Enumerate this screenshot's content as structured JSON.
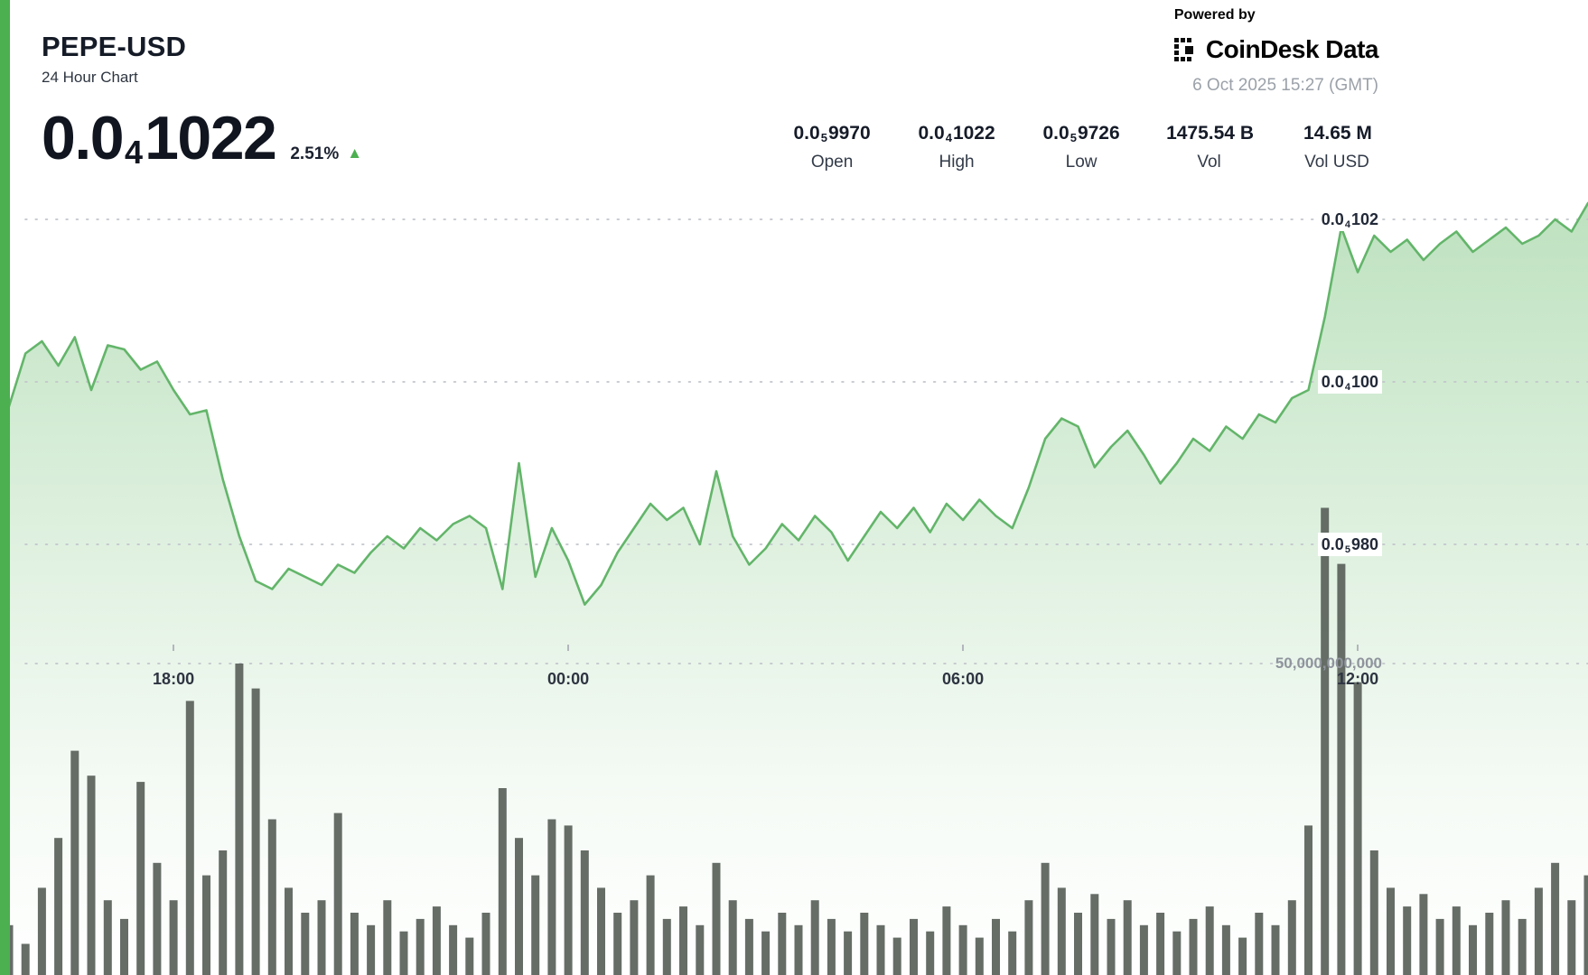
{
  "header": {
    "symbol": "PEPE-USD",
    "subtitle": "24 Hour Chart",
    "price": {
      "prefix": "0.0",
      "sub": "4",
      "rest": "1022"
    },
    "change_percent": "2.51%",
    "change_direction": "up",
    "powered_by": "Powered by",
    "brand_name": "CoinDesk Data",
    "timestamp": "6 Oct 2025 15:27 (GMT)"
  },
  "icons": {
    "up_triangle": "▲"
  },
  "stats": [
    {
      "value": {
        "prefix": "0.0",
        "sub": "5",
        "rest": "9970"
      },
      "label": "Open"
    },
    {
      "value": {
        "prefix": "0.0",
        "sub": "4",
        "rest": "1022"
      },
      "label": "High"
    },
    {
      "value": {
        "prefix": "0.0",
        "sub": "5",
        "rest": "9726"
      },
      "label": "Low"
    },
    {
      "value": {
        "prefix": "",
        "sub": "",
        "rest": "1475.54 B"
      },
      "label": "Vol"
    },
    {
      "value": {
        "prefix": "",
        "sub": "",
        "rest": "14.65 M"
      },
      "label": "Vol USD"
    }
  ],
  "colors": {
    "accent_green": "#4caf50",
    "line_green": "#63b56a",
    "area_green": "#7cc47f",
    "volume_bar": "#59615a",
    "grid": "#c2c5cb",
    "text_dark": "#151b27",
    "text_gray": "#9ba1a9"
  },
  "chart_data": {
    "type": "area",
    "title": "PEPE-USD 24 Hour Chart",
    "legend": "none",
    "grid": "dotted horizontal",
    "price_unit": "USD x 1e-7 (102 = 0.0000102)",
    "ohlc": {
      "open": "0.0₅9970",
      "high": "0.0₄1022",
      "low": "0.0₅9726",
      "volume": "1475.54 B",
      "volume_usd": "14.65 M"
    },
    "time_start": "15:30",
    "time_step_minutes": 15,
    "prices": [
      99.7,
      100.35,
      100.5,
      100.2,
      100.55,
      99.9,
      100.45,
      100.4,
      100.15,
      100.25,
      99.9,
      99.6,
      99.65,
      98.8,
      98.1,
      97.55,
      97.45,
      97.7,
      97.6,
      97.5,
      97.75,
      97.65,
      97.9,
      98.1,
      97.95,
      98.2,
      98.05,
      98.25,
      98.35,
      98.2,
      97.45,
      99.0,
      97.6,
      98.2,
      97.8,
      97.26,
      97.5,
      97.9,
      98.2,
      98.5,
      98.3,
      98.45,
      98.0,
      98.9,
      98.1,
      97.75,
      97.95,
      98.25,
      98.05,
      98.35,
      98.15,
      97.8,
      98.1,
      98.4,
      98.2,
      98.45,
      98.15,
      98.5,
      98.3,
      98.55,
      98.35,
      98.2,
      98.7,
      99.3,
      99.55,
      99.45,
      98.95,
      99.2,
      99.4,
      99.1,
      98.75,
      99.0,
      99.3,
      99.15,
      99.45,
      99.3,
      99.6,
      99.5,
      99.8,
      99.9,
      100.8,
      101.9,
      101.35,
      101.8,
      101.6,
      101.75,
      101.5,
      101.7,
      101.85,
      101.6,
      101.75,
      101.9,
      101.7,
      101.8,
      102.0,
      101.85,
      102.2
    ],
    "volumes_billions": [
      8,
      5,
      14,
      22,
      36,
      32,
      12,
      9,
      31,
      18,
      12,
      44,
      16,
      20,
      50,
      46,
      25,
      14,
      10,
      12,
      26,
      10,
      8,
      12,
      7,
      9,
      11,
      8,
      6,
      10,
      30,
      22,
      16,
      25,
      24,
      20,
      14,
      10,
      12,
      16,
      9,
      11,
      8,
      18,
      12,
      9,
      7,
      10,
      8,
      12,
      9,
      7,
      10,
      8,
      6,
      9,
      7,
      11,
      8,
      6,
      9,
      7,
      12,
      18,
      14,
      10,
      13,
      9,
      12,
      8,
      10,
      7,
      9,
      11,
      8,
      6,
      10,
      8,
      12,
      24,
      75,
      66,
      47,
      20,
      14,
      11,
      13,
      9,
      11,
      8,
      10,
      12,
      9,
      14,
      18,
      12,
      16
    ],
    "y_ticks": [
      {
        "prefix": "0.0",
        "sub": "4",
        "rest": "102",
        "value": 102
      },
      {
        "prefix": "0.0",
        "sub": "4",
        "rest": "100",
        "value": 100
      },
      {
        "prefix": "0.0",
        "sub": "5",
        "rest": "980",
        "value": 98
      }
    ],
    "volume_tick": {
      "label": "50,000,000,000",
      "value_billions": 50
    },
    "x_ticks": [
      {
        "label": "18:00",
        "index": 10
      },
      {
        "label": "00:00",
        "index": 34
      },
      {
        "label": "06:00",
        "index": 58
      },
      {
        "label": "12:00",
        "index": 82
      }
    ],
    "ylim": [
      97.0,
      102.6
    ]
  }
}
